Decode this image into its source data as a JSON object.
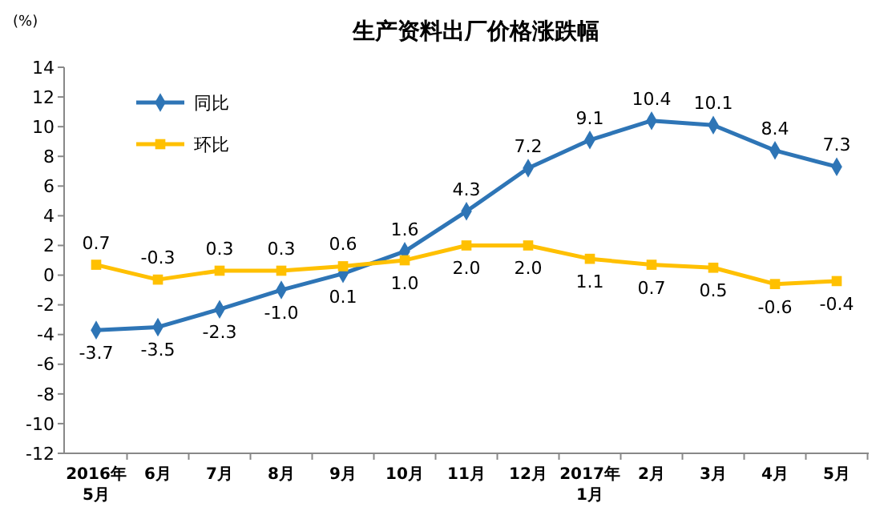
{
  "chart_data": {
    "type": "line",
    "title": "生产资料出厂价格涨跌幅",
    "ylabel": "(%)",
    "categories": [
      "2016年\n5月",
      "6月",
      "7月",
      "8月",
      "9月",
      "10月",
      "11月",
      "12月",
      "2017年\n1月",
      "2月",
      "3月",
      "4月",
      "5月"
    ],
    "series": [
      {
        "name": "同比",
        "color": "#2e75b6",
        "marker": "diamond",
        "values": [
          -3.7,
          -3.5,
          -2.3,
          -1.0,
          0.1,
          1.6,
          4.3,
          7.2,
          9.1,
          10.4,
          10.1,
          8.4,
          7.3
        ],
        "value_labels": [
          "-3.7",
          "-3.5",
          "-2.3",
          "-1.0",
          "0.1",
          "1.6",
          "4.3",
          "7.2",
          "9.1",
          "10.4",
          "10.1",
          "8.4",
          "7.3"
        ]
      },
      {
        "name": "环比",
        "color": "#ffc000",
        "marker": "square",
        "values": [
          0.7,
          -0.3,
          0.3,
          0.3,
          0.6,
          1.0,
          2.0,
          2.0,
          1.1,
          0.7,
          0.5,
          -0.6,
          -0.4
        ],
        "value_labels": [
          "0.7",
          "-0.3",
          "0.3",
          "0.3",
          "0.6",
          "1.0",
          "2.0",
          "2.0",
          "1.1",
          "0.7",
          "0.5",
          "-0.6",
          "-0.4"
        ]
      }
    ],
    "ylim": [
      -12,
      14
    ],
    "yticks": [
      -12,
      -10,
      -8,
      -6,
      -4,
      -2,
      0,
      2,
      4,
      6,
      8,
      10,
      12,
      14
    ],
    "grid": false,
    "legend": "top left"
  }
}
